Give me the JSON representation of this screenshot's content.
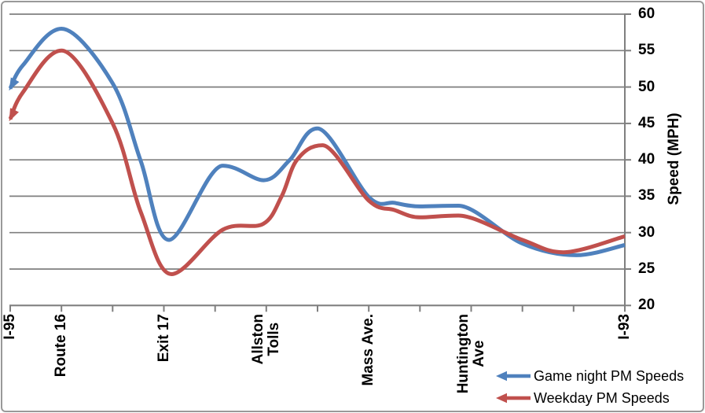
{
  "chart_data": {
    "type": "line",
    "title": "",
    "y_axis": {
      "title": "Speed (MPH)",
      "min": 20,
      "max": 60,
      "step": 5,
      "side": "right",
      "ticks": [
        60,
        55,
        50,
        45,
        40,
        35,
        30,
        25,
        20
      ]
    },
    "x_axis": {
      "units": 12,
      "tick_count": 13,
      "stations": [
        {
          "label": "I-95",
          "lines": [
            "I-95"
          ],
          "unit": 0
        },
        {
          "label": "Route 16",
          "lines": [
            "Route 16"
          ],
          "unit": 1
        },
        {
          "label": "Exit 17",
          "lines": [
            "Exit 17"
          ],
          "unit": 3
        },
        {
          "label": "Allston Tolls",
          "lines": [
            "Allston",
            "Tolls"
          ],
          "unit": 5
        },
        {
          "label": "Mass Ave.",
          "lines": [
            "Mass Ave."
          ],
          "unit": 7
        },
        {
          "label": "Huntington Ave",
          "lines": [
            "Huntington",
            "Ave"
          ],
          "unit": 9
        },
        {
          "label": "I-93",
          "lines": [
            "I-93"
          ],
          "unit": 12
        }
      ]
    },
    "series": [
      {
        "name": "Game night PM Speeds",
        "color": "#4F81BD",
        "arrow_start": true,
        "points": [
          [
            0,
            49.8
          ],
          [
            0.25,
            53
          ],
          [
            1,
            58
          ],
          [
            2,
            50.5
          ],
          [
            2.55,
            39.8
          ],
          [
            3.1,
            29
          ],
          [
            4.15,
            39.2
          ],
          [
            4.95,
            37.2
          ],
          [
            5.46,
            40
          ],
          [
            6,
            44.3
          ],
          [
            7,
            34.9
          ],
          [
            7.5,
            34.1
          ],
          [
            8,
            33.6
          ],
          [
            8.75,
            33.7
          ],
          [
            10,
            28.5
          ],
          [
            11.05,
            26.9
          ],
          [
            12,
            28.3
          ]
        ]
      },
      {
        "name": "Weekday PM Speeds",
        "color": "#C0504D",
        "arrow_start": true,
        "points": [
          [
            0,
            45.6
          ],
          [
            0.25,
            49.3
          ],
          [
            1,
            55
          ],
          [
            2,
            45
          ],
          [
            2.55,
            32.8
          ],
          [
            3.15,
            24.3
          ],
          [
            4.15,
            30.4
          ],
          [
            4.94,
            31.2
          ],
          [
            5.3,
            35
          ],
          [
            5.6,
            40
          ],
          [
            6.1,
            42
          ],
          [
            7,
            34.4
          ],
          [
            7.5,
            33.1
          ],
          [
            8,
            32.1
          ],
          [
            8.75,
            32.35
          ],
          [
            10,
            29
          ],
          [
            10.8,
            27.3
          ],
          [
            12,
            29.5
          ]
        ]
      }
    ],
    "legend": {
      "position": "bottom-right"
    },
    "gridlines": true,
    "colors": {
      "grid": "#7F7F7F",
      "axis": "#7F7F7F",
      "text": "#000000",
      "frame": "#999999",
      "background": "#FFFFFF"
    }
  }
}
